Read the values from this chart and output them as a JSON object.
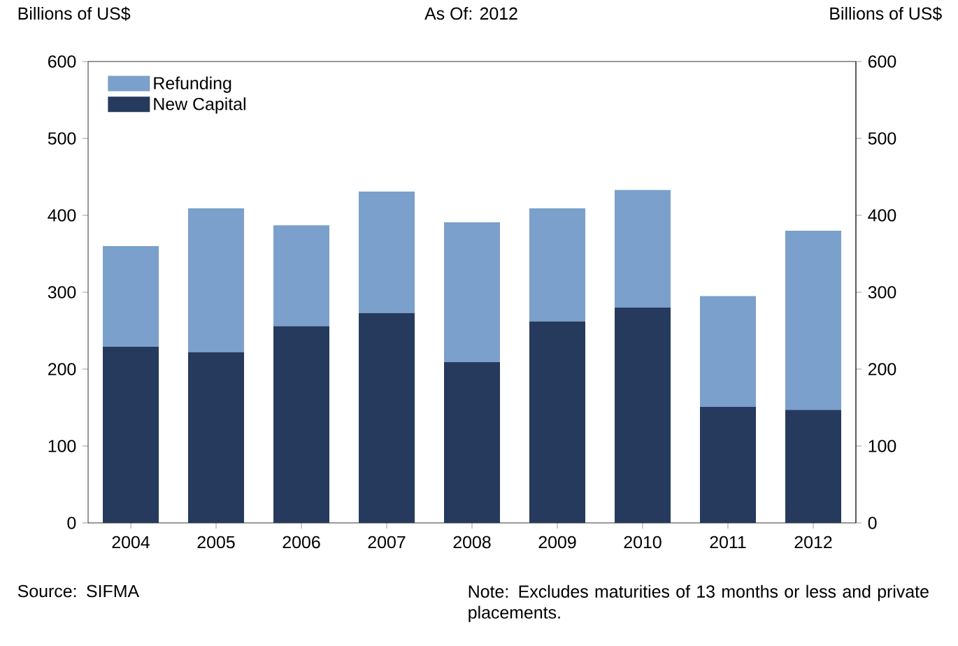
{
  "chart_data": {
    "type": "bar",
    "stacked": true,
    "title": "As Of: 2012",
    "ylabel": "Billions of US$",
    "y2label": "Billions of US$",
    "categories": [
      "2004",
      "2005",
      "2006",
      "2007",
      "2008",
      "2009",
      "2010",
      "2011",
      "2012"
    ],
    "series": [
      {
        "name": "New Capital",
        "color": "#263a5e",
        "values": [
          229,
          222,
          256,
          273,
          209,
          262,
          280,
          151,
          147
        ]
      },
      {
        "name": "Refunding",
        "color": "#7aa0cb",
        "values": [
          131,
          187,
          131,
          158,
          182,
          147,
          153,
          144,
          233
        ]
      }
    ],
    "ylim": [
      0,
      600
    ],
    "yticks": [
      0,
      100,
      200,
      300,
      400,
      500,
      600
    ],
    "y2lim": [
      0,
      600
    ],
    "y2ticks": [
      0,
      100,
      200,
      300,
      400,
      500,
      600
    ],
    "legend": "top left",
    "annotations": [
      "Source: SIFMA",
      "Note: Excludes maturities of 13 months or less and private placements."
    ]
  }
}
